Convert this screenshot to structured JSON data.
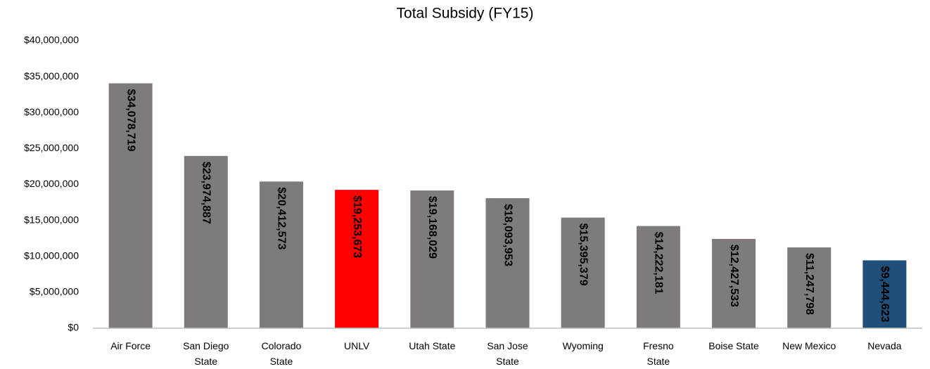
{
  "chart_data": {
    "type": "bar",
    "title": "Total Subsidy (FY15)",
    "categories": [
      "Air Force",
      "San Diego State",
      "Colorado State",
      "UNLV",
      "Utah State",
      "San Jose State",
      "Wyoming",
      "Fresno State",
      "Boise State",
      "New Mexico",
      "Nevada"
    ],
    "values": [
      34078719,
      23974887,
      20412573,
      19253673,
      19168029,
      18093953,
      15395379,
      14222181,
      12427533,
      11247798,
      9444623
    ],
    "value_labels": [
      "$34,078,719",
      "$23,974,887",
      "$20,412,573",
      "$19,253,673",
      "$19,168,029",
      "$18,093,953",
      "$15,395,379",
      "$14,222,181",
      "$12,427,533",
      "$11,247,798",
      "$9,444,623"
    ],
    "colors": [
      "#7f7b7a",
      "#7f7b7a",
      "#7f7b7a",
      "#ff0000",
      "#7f7b7a",
      "#7f7b7a",
      "#7f7b7a",
      "#7f7b7a",
      "#7f7b7a",
      "#7f7b7a",
      "#1f4e79"
    ],
    "ylim": [
      0,
      40000000
    ],
    "yticks": [
      {
        "value": 0,
        "label": "$0"
      },
      {
        "value": 5000000,
        "label": "$5,000,000"
      },
      {
        "value": 10000000,
        "label": "$10,000,000"
      },
      {
        "value": 15000000,
        "label": "$15,000,000"
      },
      {
        "value": 20000000,
        "label": "$20,000,000"
      },
      {
        "value": 25000000,
        "label": "$25,000,000"
      },
      {
        "value": 30000000,
        "label": "$30,000,000"
      },
      {
        "value": 35000000,
        "label": "$35,000,000"
      },
      {
        "value": 40000000,
        "label": "$40,000,000"
      }
    ],
    "grid": false
  }
}
